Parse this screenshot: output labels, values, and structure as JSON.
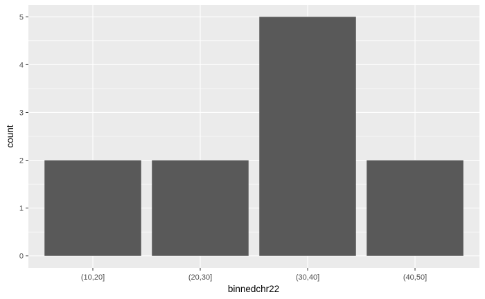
{
  "chart_data": {
    "type": "bar",
    "title": "",
    "xlabel": "binnedchr22",
    "ylabel": "count",
    "categories": [
      "(10,20]",
      "(20,30]",
      "(30,40]",
      "(40,50]"
    ],
    "values": [
      2,
      2,
      5,
      2
    ],
    "y_ticks": [
      "0",
      "1",
      "2",
      "3",
      "4",
      "5"
    ],
    "ylim": [
      -0.25,
      5.25
    ],
    "grid": true,
    "legend": "none",
    "colors": {
      "panel_background": "#ebebeb",
      "grid_major": "#ffffff",
      "bar_fill": "#595959",
      "tick_text": "#4d4d4d",
      "axis_title_text": "#000000",
      "tick_mark": "#333333"
    }
  }
}
